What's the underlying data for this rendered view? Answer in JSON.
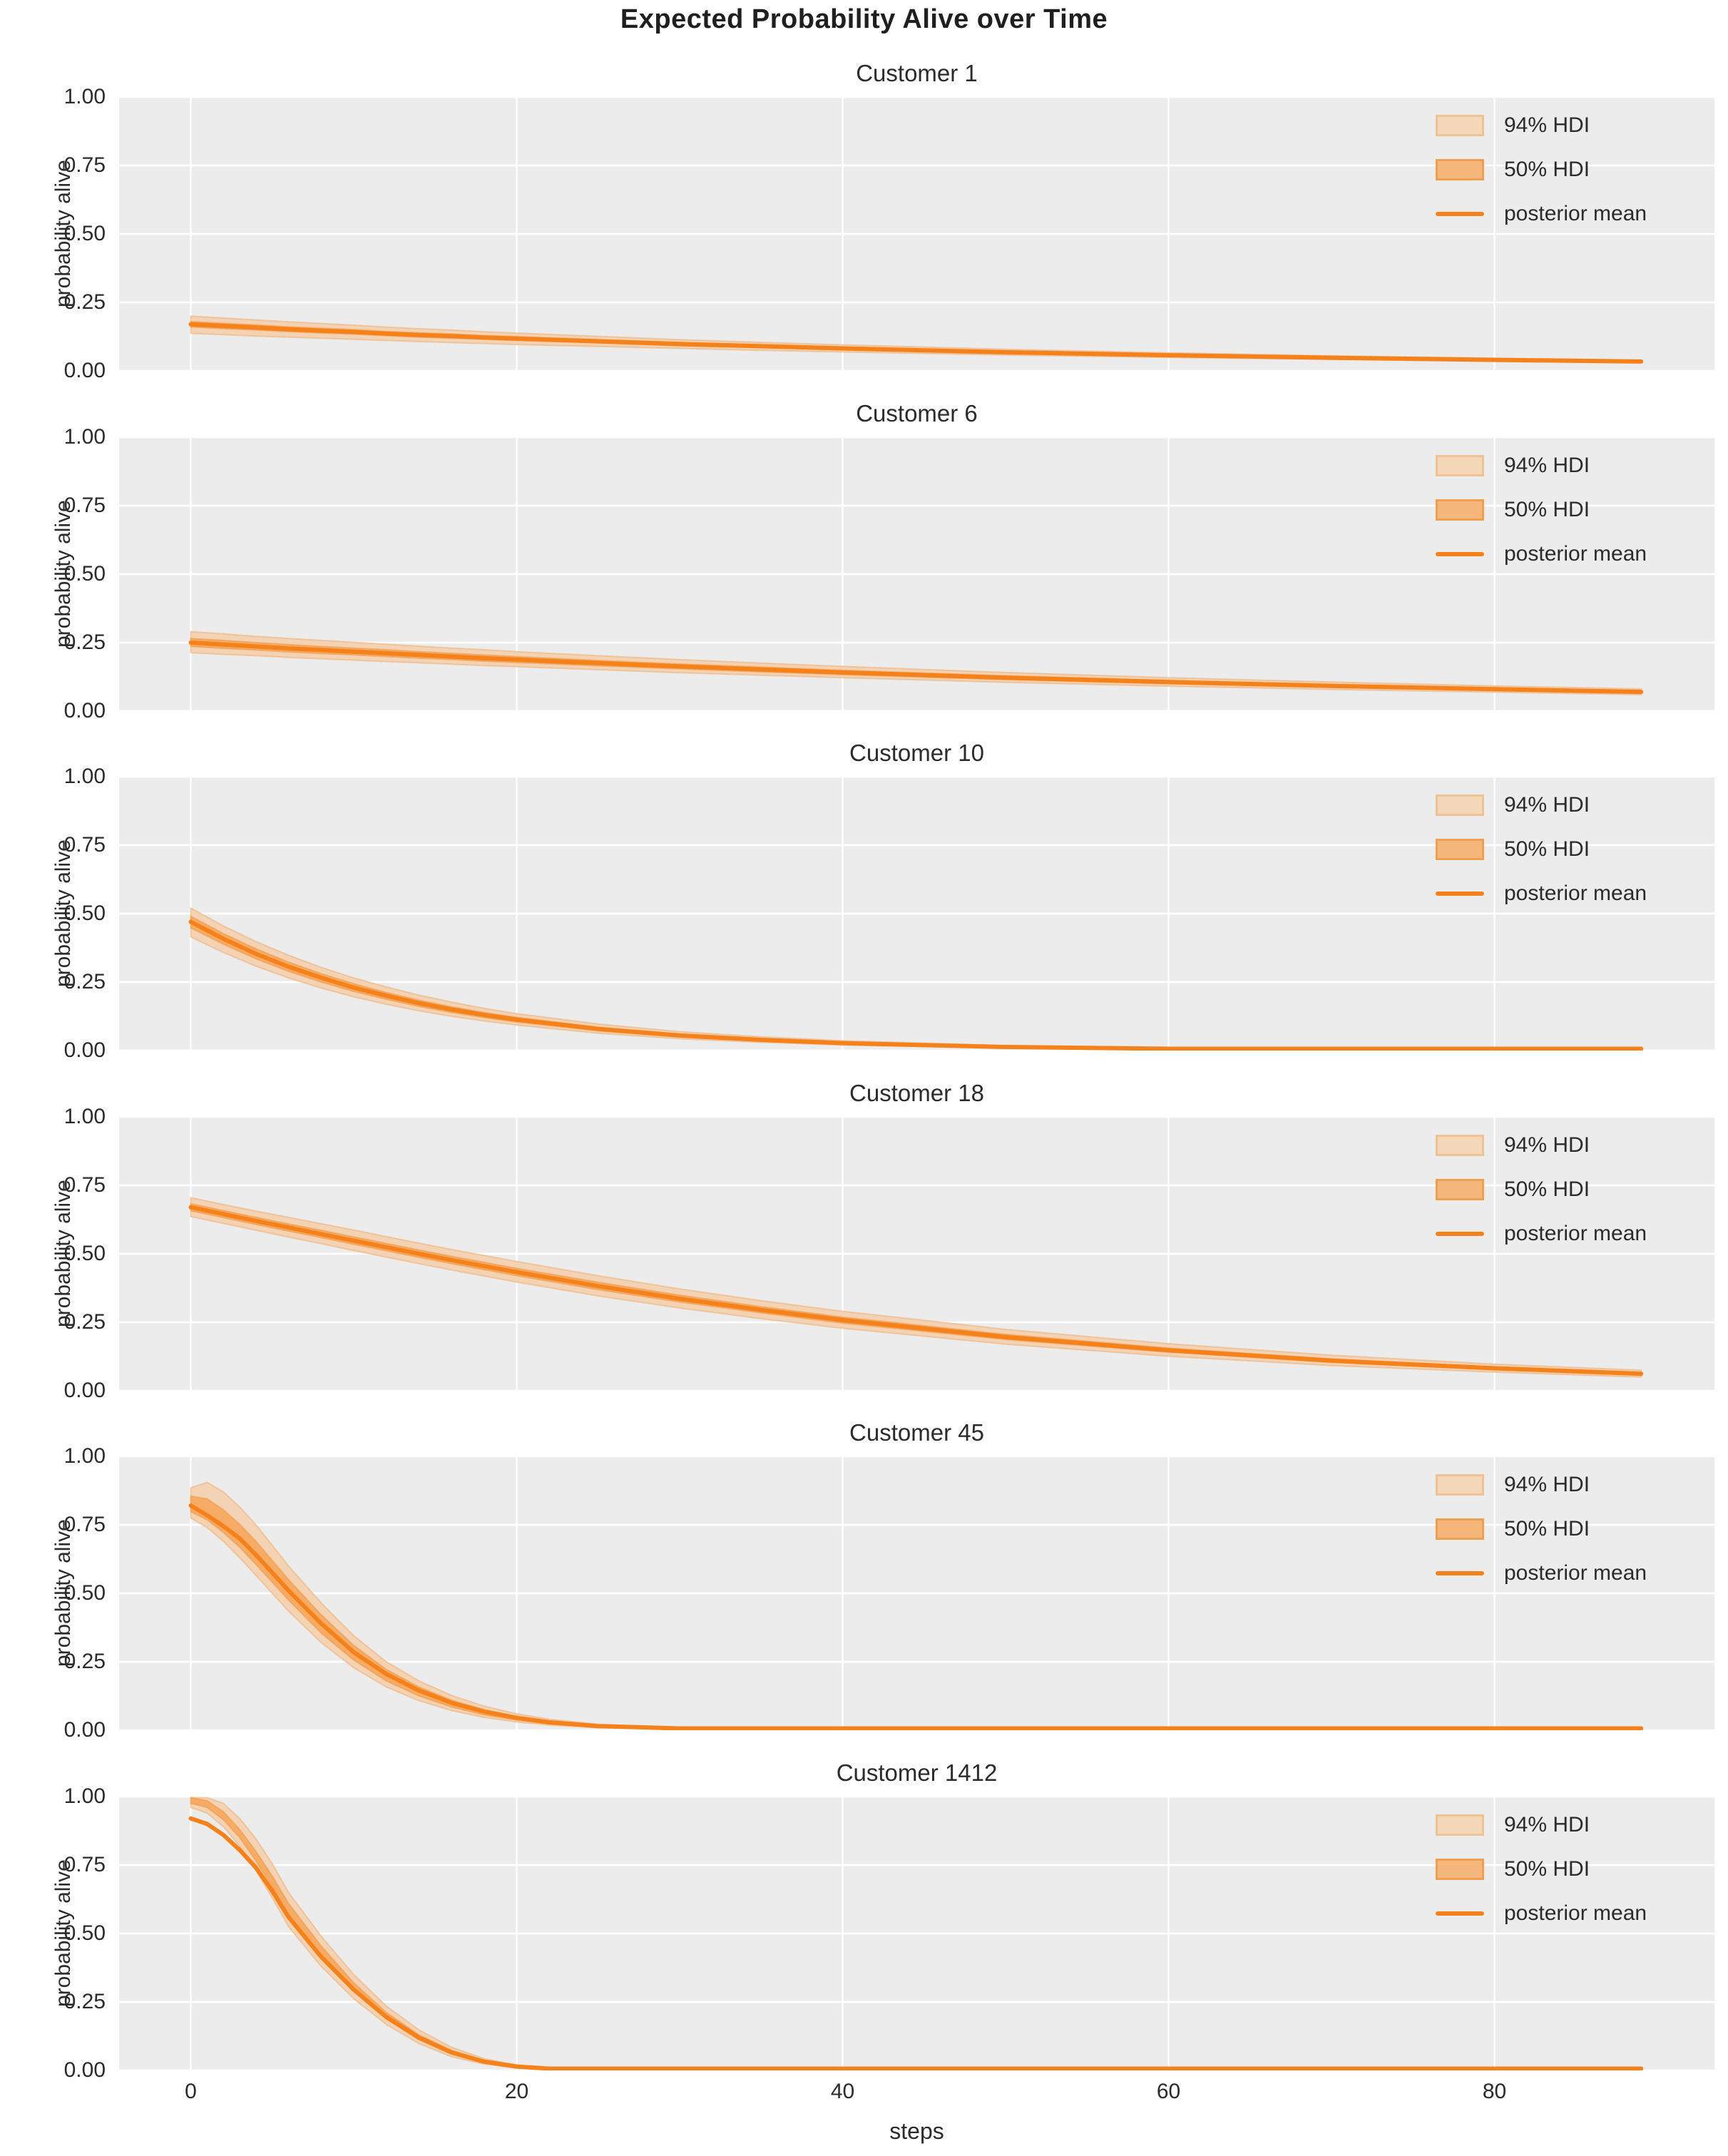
{
  "chart_data": {
    "type": "line",
    "suptitle": "Expected Probability Alive over Time",
    "xlabel": "steps",
    "ylabel": "probability alive",
    "x_ticks": [
      0,
      20,
      40,
      60,
      80
    ],
    "y_tick_labels": [
      "1.00",
      "0.75",
      "0.50",
      "0.25",
      "0.00"
    ],
    "y_tick_values": [
      1.0,
      0.75,
      0.5,
      0.25,
      0.0
    ],
    "xlim": [
      -4.4,
      93.5
    ],
    "ylim": [
      0,
      1
    ],
    "grid": true,
    "legend_position": "upper right",
    "legend": {
      "hdi94": "94% HDI",
      "hdi50": "50% HDI",
      "mean": "posterior mean"
    },
    "colors": {
      "posterior_mean": "#f5811b",
      "hdi_94_fill": "#f3d3b4",
      "hdi_94_edge": "#eeb37c",
      "hdi_50_fill": "#f6ac66",
      "hdi_50_edge": "#ef953e",
      "legend_94_fill": "#f4d6b8",
      "legend_94_edge": "#efc294",
      "legend_50_fill": "#f5b67c",
      "legend_50_edge": "#efa04e",
      "axes_background": "#ececec",
      "grid": "#ffffff",
      "text": "#2b2b2b"
    },
    "subplots": [
      {
        "title": "Customer 1",
        "x": [
          0,
          2,
          4,
          6,
          8,
          10,
          12,
          14,
          16,
          18,
          20,
          25,
          30,
          35,
          40,
          50,
          60,
          70,
          80,
          89
        ],
        "posterior_mean": [
          0.17,
          0.164,
          0.158,
          0.152,
          0.147,
          0.142,
          0.136,
          0.131,
          0.127,
          0.122,
          0.118,
          0.108,
          0.098,
          0.09,
          0.082,
          0.068,
          0.057,
          0.048,
          0.04,
          0.034
        ],
        "hdi94_upper": [
          0.2,
          0.193,
          0.186,
          0.179,
          0.173,
          0.167,
          0.16,
          0.154,
          0.149,
          0.143,
          0.138,
          0.126,
          0.114,
          0.104,
          0.095,
          0.079,
          0.066,
          0.055,
          0.046,
          0.039
        ],
        "hdi94_lower": [
          0.137,
          0.132,
          0.127,
          0.123,
          0.119,
          0.115,
          0.111,
          0.107,
          0.103,
          0.1,
          0.096,
          0.089,
          0.082,
          0.075,
          0.069,
          0.058,
          0.049,
          0.042,
          0.035,
          0.03
        ],
        "hdi50_upper": [
          0.18,
          0.174,
          0.168,
          0.161,
          0.156,
          0.151,
          0.144,
          0.139,
          0.135,
          0.129,
          0.125,
          0.114,
          0.104,
          0.095,
          0.087,
          0.072,
          0.06,
          0.051,
          0.042,
          0.036
        ],
        "hdi50_lower": [
          0.16,
          0.154,
          0.149,
          0.143,
          0.138,
          0.134,
          0.128,
          0.123,
          0.119,
          0.115,
          0.111,
          0.102,
          0.092,
          0.085,
          0.077,
          0.064,
          0.054,
          0.045,
          0.038,
          0.032
        ]
      },
      {
        "title": "Customer 6",
        "x": [
          0,
          2,
          4,
          6,
          8,
          10,
          12,
          14,
          16,
          18,
          20,
          25,
          30,
          35,
          40,
          50,
          60,
          70,
          80,
          89
        ],
        "posterior_mean": [
          0.25,
          0.243,
          0.236,
          0.229,
          0.223,
          0.217,
          0.211,
          0.205,
          0.199,
          0.193,
          0.188,
          0.175,
          0.163,
          0.152,
          0.141,
          0.122,
          0.106,
          0.092,
          0.08,
          0.07
        ],
        "hdi94_upper": [
          0.29,
          0.282,
          0.273,
          0.265,
          0.258,
          0.251,
          0.244,
          0.237,
          0.23,
          0.224,
          0.217,
          0.202,
          0.188,
          0.175,
          0.163,
          0.141,
          0.122,
          0.106,
          0.092,
          0.081
        ],
        "hdi94_lower": [
          0.213,
          0.207,
          0.202,
          0.196,
          0.191,
          0.186,
          0.181,
          0.176,
          0.171,
          0.166,
          0.162,
          0.151,
          0.14,
          0.131,
          0.122,
          0.105,
          0.091,
          0.079,
          0.069,
          0.06
        ],
        "hdi50_upper": [
          0.265,
          0.258,
          0.25,
          0.243,
          0.236,
          0.23,
          0.224,
          0.217,
          0.211,
          0.205,
          0.199,
          0.185,
          0.172,
          0.161,
          0.149,
          0.129,
          0.112,
          0.097,
          0.085,
          0.074
        ],
        "hdi50_lower": [
          0.236,
          0.229,
          0.223,
          0.216,
          0.21,
          0.205,
          0.199,
          0.193,
          0.188,
          0.182,
          0.177,
          0.165,
          0.154,
          0.143,
          0.133,
          0.115,
          0.1,
          0.087,
          0.076,
          0.066
        ]
      },
      {
        "title": "Customer 10",
        "x": [
          0,
          2,
          4,
          6,
          8,
          10,
          12,
          14,
          16,
          18,
          20,
          25,
          30,
          35,
          40,
          50,
          60,
          70,
          80,
          89
        ],
        "posterior_mean": [
          0.47,
          0.408,
          0.353,
          0.306,
          0.266,
          0.23,
          0.2,
          0.173,
          0.15,
          0.13,
          0.113,
          0.079,
          0.055,
          0.039,
          0.027,
          0.013,
          0.006,
          0.003,
          0.002,
          0.001
        ],
        "hdi94_upper": [
          0.52,
          0.455,
          0.398,
          0.348,
          0.304,
          0.265,
          0.232,
          0.202,
          0.177,
          0.154,
          0.135,
          0.097,
          0.069,
          0.05,
          0.036,
          0.018,
          0.009,
          0.005,
          0.003,
          0.002
        ],
        "hdi94_lower": [
          0.415,
          0.358,
          0.308,
          0.265,
          0.228,
          0.196,
          0.169,
          0.145,
          0.125,
          0.108,
          0.093,
          0.063,
          0.043,
          0.03,
          0.02,
          0.009,
          0.004,
          0.002,
          0.001,
          0.001
        ],
        "hdi50_upper": [
          0.49,
          0.427,
          0.372,
          0.323,
          0.281,
          0.244,
          0.212,
          0.184,
          0.16,
          0.139,
          0.121,
          0.085,
          0.06,
          0.042,
          0.03,
          0.014,
          0.007,
          0.003,
          0.002,
          0.001
        ],
        "hdi50_lower": [
          0.448,
          0.388,
          0.335,
          0.289,
          0.25,
          0.216,
          0.187,
          0.161,
          0.139,
          0.12,
          0.104,
          0.072,
          0.05,
          0.035,
          0.024,
          0.011,
          0.005,
          0.002,
          0.001,
          0.001
        ]
      },
      {
        "title": "Customer 18",
        "x": [
          0,
          2,
          4,
          6,
          8,
          10,
          12,
          14,
          16,
          18,
          20,
          25,
          30,
          35,
          40,
          50,
          60,
          70,
          80,
          89
        ],
        "posterior_mean": [
          0.67,
          0.645,
          0.62,
          0.596,
          0.572,
          0.548,
          0.524,
          0.5,
          0.477,
          0.455,
          0.433,
          0.382,
          0.336,
          0.295,
          0.258,
          0.196,
          0.148,
          0.11,
          0.082,
          0.062
        ],
        "hdi94_upper": [
          0.705,
          0.68,
          0.656,
          0.633,
          0.61,
          0.587,
          0.563,
          0.539,
          0.516,
          0.494,
          0.472,
          0.42,
          0.372,
          0.329,
          0.29,
          0.224,
          0.172,
          0.13,
          0.097,
          0.075
        ],
        "hdi94_lower": [
          0.636,
          0.611,
          0.586,
          0.561,
          0.537,
          0.512,
          0.488,
          0.464,
          0.441,
          0.419,
          0.397,
          0.346,
          0.302,
          0.263,
          0.228,
          0.17,
          0.126,
          0.092,
          0.068,
          0.05
        ],
        "hdi50_upper": [
          0.683,
          0.658,
          0.633,
          0.609,
          0.586,
          0.562,
          0.538,
          0.514,
          0.491,
          0.469,
          0.447,
          0.396,
          0.349,
          0.307,
          0.269,
          0.206,
          0.156,
          0.116,
          0.087,
          0.066
        ],
        "hdi50_lower": [
          0.657,
          0.632,
          0.607,
          0.583,
          0.559,
          0.535,
          0.511,
          0.487,
          0.464,
          0.442,
          0.42,
          0.369,
          0.324,
          0.284,
          0.247,
          0.187,
          0.141,
          0.104,
          0.077,
          0.057
        ]
      },
      {
        "title": "Customer 45",
        "x": [
          0,
          1,
          2,
          3,
          4,
          5,
          6,
          8,
          10,
          12,
          14,
          16,
          18,
          20,
          22,
          25,
          30,
          40,
          60,
          89
        ],
        "posterior_mean": [
          0.82,
          0.785,
          0.745,
          0.7,
          0.64,
          0.575,
          0.51,
          0.39,
          0.285,
          0.205,
          0.145,
          0.1,
          0.068,
          0.045,
          0.029,
          0.015,
          0.005,
          0.001,
          0.0,
          0.0
        ],
        "hdi94_upper": [
          0.885,
          0.905,
          0.87,
          0.815,
          0.75,
          0.675,
          0.6,
          0.465,
          0.345,
          0.25,
          0.18,
          0.127,
          0.088,
          0.06,
          0.04,
          0.022,
          0.008,
          0.002,
          0.001,
          0.001
        ],
        "hdi94_lower": [
          0.775,
          0.74,
          0.69,
          0.63,
          0.565,
          0.5,
          0.435,
          0.32,
          0.228,
          0.158,
          0.108,
          0.072,
          0.047,
          0.03,
          0.019,
          0.009,
          0.003,
          0.0,
          0.0,
          0.0
        ],
        "hdi50_upper": [
          0.855,
          0.845,
          0.805,
          0.752,
          0.69,
          0.62,
          0.55,
          0.422,
          0.31,
          0.222,
          0.158,
          0.11,
          0.075,
          0.05,
          0.033,
          0.017,
          0.006,
          0.001,
          0.0,
          0.0
        ],
        "hdi50_lower": [
          0.798,
          0.768,
          0.722,
          0.668,
          0.605,
          0.54,
          0.475,
          0.355,
          0.256,
          0.18,
          0.125,
          0.085,
          0.056,
          0.037,
          0.023,
          0.012,
          0.004,
          0.001,
          0.0,
          0.0
        ]
      },
      {
        "title": "Customer 1412",
        "x": [
          0,
          1,
          2,
          3,
          4,
          5,
          6,
          8,
          10,
          12,
          14,
          16,
          18,
          20,
          22,
          25,
          30,
          40,
          60,
          89
        ],
        "posterior_mean": [
          0.92,
          0.9,
          0.86,
          0.805,
          0.74,
          0.655,
          0.56,
          0.415,
          0.295,
          0.195,
          0.12,
          0.066,
          0.032,
          0.014,
          0.006,
          0.002,
          0.0,
          0.0,
          0.0,
          0.0
        ],
        "hdi94_upper": [
          1.0,
          0.998,
          0.975,
          0.92,
          0.845,
          0.755,
          0.65,
          0.49,
          0.35,
          0.235,
          0.148,
          0.085,
          0.043,
          0.02,
          0.009,
          0.003,
          0.001,
          0.0,
          0.0,
          0.0
        ],
        "hdi94_lower": [
          0.96,
          0.94,
          0.89,
          0.82,
          0.73,
          0.63,
          0.525,
          0.38,
          0.262,
          0.168,
          0.098,
          0.05,
          0.023,
          0.009,
          0.004,
          0.001,
          0.0,
          0.0,
          0.0,
          0.0
        ],
        "hdi50_upper": [
          1.0,
          0.985,
          0.945,
          0.88,
          0.8,
          0.71,
          0.61,
          0.455,
          0.32,
          0.212,
          0.13,
          0.073,
          0.036,
          0.016,
          0.007,
          0.002,
          0.0,
          0.0,
          0.0,
          0.0
        ],
        "hdi50_lower": [
          0.975,
          0.96,
          0.915,
          0.85,
          0.765,
          0.67,
          0.57,
          0.418,
          0.29,
          0.188,
          0.112,
          0.06,
          0.028,
          0.012,
          0.005,
          0.001,
          0.0,
          0.0,
          0.0,
          0.0
        ]
      }
    ]
  }
}
